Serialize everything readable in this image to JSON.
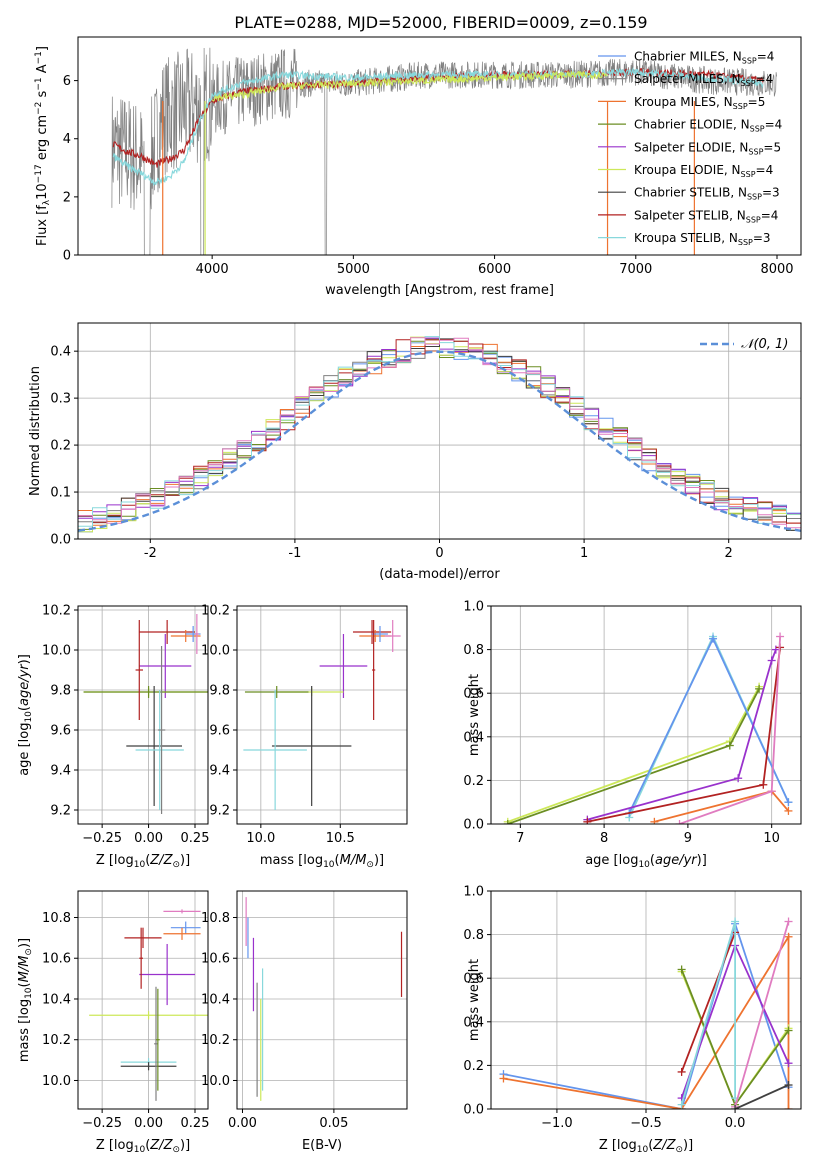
{
  "title": "PLATE=0288, MJD=52000, FIBERID=0009, z=0.159",
  "models": [
    {
      "name": "Chabrier MILES",
      "nssp": "4",
      "color": "#6495ed"
    },
    {
      "name": "Salpeter MILES",
      "nssp": "4",
      "color": "#808080"
    },
    {
      "name": "Kroupa MILES",
      "nssp": "5",
      "color": "#ee7330"
    },
    {
      "name": "Chabrier ELODIE",
      "nssp": "4",
      "color": "#6b8e23"
    },
    {
      "name": "Salpeter ELODIE",
      "nssp": "5",
      "color": "#9932cc"
    },
    {
      "name": "Kroupa ELODIE",
      "nssp": "4",
      "color": "#cde85a"
    },
    {
      "name": "Chabrier STELIB",
      "nssp": "3",
      "color": "#404040"
    },
    {
      "name": "Salpeter STELIB",
      "nssp": "4",
      "color": "#b22222"
    },
    {
      "name": "Kroupa STELIB",
      "nssp": "3",
      "color": "#88d8dc"
    }
  ],
  "chart_data": [
    {
      "id": "spectrum",
      "type": "line",
      "xlabel": "wavelength [Angstrom, rest frame]",
      "ylabel": "Flux [f_λ 10^-17 erg cm^-2 s^-1 A^-1]",
      "xlim": [
        3050,
        8170
      ],
      "ylim": [
        0,
        7.5
      ],
      "xticks": [
        4000,
        5000,
        6000,
        7000,
        8000
      ],
      "yticks": [
        0,
        2,
        4,
        6
      ],
      "data_series": {
        "name": "",
        "color": "#808080",
        "x": [
          3300,
          3450,
          3550,
          3650,
          3800,
          4000,
          4200,
          4500,
          5000,
          5500,
          6000,
          6500,
          7000,
          7500,
          8000
        ],
        "y": [
          3.7,
          3.4,
          3.0,
          4.8,
          5.0,
          5.3,
          5.6,
          5.9,
          5.9,
          6.2,
          6.2,
          6.2,
          6.3,
          6.0,
          5.9
        ]
      },
      "model_series": [
        {
          "name": "Salpeter STELIB",
          "color": "#b22222",
          "x": [
            3300,
            3400,
            3500,
            3600,
            3700,
            3800,
            3900,
            4000,
            4200,
            4500,
            5000,
            5500,
            6000,
            6500,
            7000,
            7500,
            7900
          ],
          "y": [
            3.8,
            3.55,
            3.4,
            3.1,
            3.3,
            3.6,
            4.6,
            5.3,
            5.6,
            5.8,
            5.9,
            6.1,
            6.2,
            6.2,
            6.3,
            6.2,
            6.0
          ]
        },
        {
          "name": "Kroupa STELIB",
          "color": "#88d8dc",
          "x": [
            3300,
            3400,
            3500,
            3600,
            3700,
            3800,
            3900,
            4000,
            4200,
            4500,
            5000,
            5500,
            6000,
            6500,
            7000,
            7500,
            7900
          ],
          "y": [
            3.4,
            3.05,
            2.8,
            2.5,
            2.7,
            3.2,
            4.5,
            5.5,
            5.9,
            6.2,
            6.1,
            6.2,
            6.2,
            6.2,
            6.3,
            6.1,
            5.9
          ]
        },
        {
          "name": "Kroupa ELODIE",
          "color": "#cde85a",
          "x": [
            4000,
            4200,
            4500,
            5000,
            5500,
            6000,
            6500,
            6800
          ],
          "y": [
            5.4,
            5.5,
            5.8,
            5.9,
            6.0,
            6.1,
            6.2,
            6.2
          ]
        }
      ]
    },
    {
      "id": "residuals",
      "type": "histogram",
      "xlabel": "(data-model)/error",
      "ylabel": "Normed distribution",
      "xlim": [
        -2.5,
        2.5
      ],
      "ylim": [
        0,
        0.46
      ],
      "xticks": [
        -2,
        -1,
        0,
        1,
        2
      ],
      "yticks": [
        0.0,
        0.1,
        0.2,
        0.3,
        0.4
      ],
      "bin_width": 0.1,
      "reference_label": "𝒩(0, 1)",
      "reference_color": "#5b8fd8"
    },
    {
      "id": "age_vs_Z",
      "type": "scatter-errorbar",
      "xlabel": "Z [log10(Z/Z⊙)]",
      "ylabel": "age [log10(age/yr)]",
      "xlim": [
        -0.38,
        0.32
      ],
      "ylim": [
        9.13,
        10.22
      ],
      "xticks": [
        -0.25,
        0.0,
        0.25
      ],
      "xticklabels": [
        "−0.25",
        "0.00",
        "0.25"
      ],
      "yticks": [
        9.2,
        9.4,
        9.6,
        9.8,
        10.0,
        10.2
      ],
      "points": [
        {
          "color": "#b22222",
          "x": 0.1,
          "xerr": 0.15,
          "y": 10.09,
          "yerr": 0.06
        },
        {
          "color": "#ee7330",
          "x": 0.2,
          "xerr": 0.08,
          "y": 10.07,
          "yerr": 0.03
        },
        {
          "color": "#6495ed",
          "x": 0.24,
          "xerr": 0.04,
          "y": 10.08,
          "yerr": 0.04
        },
        {
          "color": "#9932cc",
          "x": 0.09,
          "xerr": 0.14,
          "y": 9.92,
          "yerr": 0.16
        },
        {
          "color": "#cde85a",
          "x": 0.0,
          "xerr": 0.35,
          "y": 9.79,
          "yerr": 0.02
        },
        {
          "color": "#6b8e23",
          "x": 0.0,
          "xerr": 0.35,
          "y": 9.79,
          "yerr": 0.03
        },
        {
          "color": "#b22222",
          "x": -0.05,
          "xerr": 0.02,
          "y": 9.9,
          "yerr": 0.25
        },
        {
          "color": "#404040",
          "x": 0.03,
          "xerr": 0.15,
          "y": 9.52,
          "yerr": 0.3
        },
        {
          "color": "#88d8dc",
          "x": 0.06,
          "xerr": 0.13,
          "y": 9.5,
          "yerr": 0.3
        },
        {
          "color": "#808080",
          "x": 0.07,
          "xerr": 0.02,
          "y": 9.6,
          "yerr": 0.42
        },
        {
          "color": "#e07cc0",
          "x": 0.26,
          "xerr": 0.01,
          "y": 10.08,
          "yerr": 0.1
        }
      ]
    },
    {
      "id": "age_vs_mass",
      "type": "scatter-errorbar",
      "xlabel": "mass [log10(M/M⊙)]",
      "ylabel": "",
      "xlim": [
        9.85,
        10.92
      ],
      "ylim": [
        9.13,
        10.22
      ],
      "xticks": [
        10.0,
        10.5
      ],
      "xticklabels": [
        "10.0",
        "10.5"
      ],
      "yticks": [
        9.2,
        9.4,
        9.6,
        9.8,
        10.0,
        10.2
      ],
      "points": [
        {
          "color": "#b22222",
          "x": 10.7,
          "xerr": 0.12,
          "y": 10.09,
          "yerr": 0.06
        },
        {
          "color": "#ee7330",
          "x": 10.72,
          "xerr": 0.1,
          "y": 10.07,
          "yerr": 0.03
        },
        {
          "color": "#6495ed",
          "x": 10.75,
          "xerr": 0.05,
          "y": 10.08,
          "yerr": 0.04
        },
        {
          "color": "#e07cc0",
          "x": 10.83,
          "xerr": 0.05,
          "y": 10.07,
          "yerr": 0.08
        },
        {
          "color": "#9932cc",
          "x": 10.52,
          "xerr": 0.15,
          "y": 9.92,
          "yerr": 0.16
        },
        {
          "color": "#cde85a",
          "x": 10.32,
          "xerr": 0.2,
          "y": 9.79,
          "yerr": 0.02
        },
        {
          "color": "#6b8e23",
          "x": 10.1,
          "xerr": 0.2,
          "y": 9.79,
          "yerr": 0.03
        },
        {
          "color": "#404040",
          "x": 10.32,
          "xerr": 0.25,
          "y": 9.52,
          "yerr": 0.3
        },
        {
          "color": "#88d8dc",
          "x": 10.09,
          "xerr": 0.2,
          "y": 9.5,
          "yerr": 0.3
        },
        {
          "color": "#b22222",
          "x": 10.71,
          "xerr": 0.01,
          "y": 9.9,
          "yerr": 0.25
        }
      ]
    },
    {
      "id": "weight_vs_age",
      "type": "line",
      "xlabel": "age [log10(age/yr)]",
      "ylabel": "mass weight",
      "xlim": [
        6.65,
        10.35
      ],
      "ylim": [
        0,
        1.0
      ],
      "xticks": [
        7,
        8,
        9,
        10
      ],
      "yticks": [
        0.0,
        0.2,
        0.4,
        0.6,
        0.8,
        1.0
      ],
      "series": [
        {
          "color": "#cde85a",
          "x": [
            6.85,
            9.5,
            9.85
          ],
          "y": [
            0.01,
            0.38,
            0.63
          ]
        },
        {
          "color": "#6b8e23",
          "x": [
            6.85,
            9.5,
            9.85
          ],
          "y": [
            0.0,
            0.36,
            0.62
          ]
        },
        {
          "color": "#88d8dc",
          "x": [
            8.3,
            9.3,
            10.2
          ],
          "y": [
            0.03,
            0.86,
            0.1
          ]
        },
        {
          "color": "#6495ed",
          "x": [
            8.3,
            9.3,
            10.2
          ],
          "y": [
            0.05,
            0.85,
            0.1
          ]
        },
        {
          "color": "#9932cc",
          "x": [
            7.8,
            9.6,
            10.0,
            10.05
          ],
          "y": [
            0.02,
            0.21,
            0.75,
            0.8
          ]
        },
        {
          "color": "#b22222",
          "x": [
            7.8,
            9.9,
            10.1
          ],
          "y": [
            0.01,
            0.18,
            0.81
          ]
        },
        {
          "color": "#ee7330",
          "x": [
            8.6,
            10.0,
            10.2
          ],
          "y": [
            0.01,
            0.15,
            0.06
          ]
        },
        {
          "color": "#e07cc0",
          "x": [
            8.9,
            10.0,
            10.1
          ],
          "y": [
            0.0,
            0.15,
            0.86
          ]
        }
      ]
    },
    {
      "id": "mass_vs_Z",
      "type": "scatter-errorbar",
      "xlabel": "Z [log10(Z/Z⊙)]",
      "ylabel": "mass [log10(M/M⊙)]",
      "xlim": [
        -0.38,
        0.32
      ],
      "ylim": [
        9.86,
        10.93
      ],
      "xticks": [
        -0.25,
        0.0,
        0.25
      ],
      "xticklabels": [
        "−0.25",
        "0.00",
        "0.25"
      ],
      "yticks": [
        10.0,
        10.2,
        10.4,
        10.6,
        10.8
      ],
      "points": [
        {
          "color": "#e07cc0",
          "x": 0.18,
          "xerr": 0.1,
          "y": 10.83,
          "yerr": 0.01
        },
        {
          "color": "#6495ed",
          "x": 0.2,
          "xerr": 0.08,
          "y": 10.75,
          "yerr": 0.03
        },
        {
          "color": "#ee7330",
          "x": 0.18,
          "xerr": 0.1,
          "y": 10.72,
          "yerr": 0.03
        },
        {
          "color": "#b22222",
          "x": -0.03,
          "xerr": 0.1,
          "y": 10.7,
          "yerr": 0.05
        },
        {
          "color": "#9932cc",
          "x": 0.1,
          "xerr": 0.15,
          "y": 10.52,
          "yerr": 0.15
        },
        {
          "color": "#cde85a",
          "x": 0.0,
          "xerr": 0.32,
          "y": 10.32,
          "yerr": 0.02
        },
        {
          "color": "#88d8dc",
          "x": 0.0,
          "xerr": 0.15,
          "y": 10.09,
          "yerr": 0.02
        },
        {
          "color": "#404040",
          "x": 0.0,
          "xerr": 0.15,
          "y": 10.07,
          "yerr": 0.02
        },
        {
          "color": "#b22222",
          "x": -0.04,
          "xerr": 0.01,
          "y": 10.6,
          "yerr": 0.15
        },
        {
          "color": "#808080",
          "x": 0.04,
          "xerr": 0.01,
          "y": 10.18,
          "yerr": 0.28
        },
        {
          "color": "#6b8e23",
          "x": 0.05,
          "xerr": 0.01,
          "y": 10.2,
          "yerr": 0.25
        }
      ]
    },
    {
      "id": "mass_vs_ebv",
      "type": "scatter-errorbar",
      "xlabel": "E(B-V)",
      "ylabel": "",
      "xlim": [
        -0.003,
        0.09
      ],
      "ylim": [
        9.86,
        10.93
      ],
      "xticks": [
        0.0,
        0.05
      ],
      "xticklabels": [
        "0.00",
        "0.05"
      ],
      "yticks": [
        10.0,
        10.2,
        10.4,
        10.6,
        10.8
      ],
      "points": [
        {
          "color": "#e07cc0",
          "x": 0.002,
          "xerr": 0,
          "y": 10.78,
          "yerr": 0.12
        },
        {
          "color": "#6495ed",
          "x": 0.003,
          "xerr": 0,
          "y": 10.7,
          "yerr": 0.1
        },
        {
          "color": "#9932cc",
          "x": 0.006,
          "xerr": 0,
          "y": 10.52,
          "yerr": 0.18
        },
        {
          "color": "#808080",
          "x": 0.008,
          "xerr": 0,
          "y": 10.2,
          "yerr": 0.28
        },
        {
          "color": "#cde85a",
          "x": 0.01,
          "xerr": 0,
          "y": 10.15,
          "yerr": 0.25
        },
        {
          "color": "#88d8dc",
          "x": 0.011,
          "xerr": 0,
          "y": 10.25,
          "yerr": 0.3
        },
        {
          "color": "#b22222",
          "x": 0.087,
          "xerr": 0,
          "y": 10.57,
          "yerr": 0.16
        }
      ]
    },
    {
      "id": "weight_vs_Z",
      "type": "line",
      "xlabel": "Z [log10(Z/Z⊙)]",
      "ylabel": "mass weight",
      "xlim": [
        -1.37,
        0.37
      ],
      "ylim": [
        0,
        1.0
      ],
      "xticks": [
        -1.0,
        -0.5,
        0.0
      ],
      "xticklabels": [
        "−1.0",
        "−0.5",
        "0.0"
      ],
      "yticks": [
        0.0,
        0.2,
        0.4,
        0.6,
        0.8,
        1.0
      ],
      "series": [
        {
          "color": "#6495ed",
          "x": [
            -1.3,
            -0.3,
            0.0,
            0.3
          ],
          "y": [
            0.16,
            0.0,
            0.85,
            0.1
          ]
        },
        {
          "color": "#ee7330",
          "x": [
            -1.3,
            -0.3,
            0.3,
            0.3
          ],
          "y": [
            0.14,
            0.0,
            0.79,
            0.0
          ]
        },
        {
          "color": "#cde85a",
          "x": [
            -0.3,
            0.0,
            0.3
          ],
          "y": [
            0.63,
            0.02,
            0.37
          ]
        },
        {
          "color": "#6b8e23",
          "x": [
            -0.3,
            0.0,
            0.3
          ],
          "y": [
            0.64,
            0.02,
            0.36
          ]
        },
        {
          "color": "#b22222",
          "x": [
            -0.3,
            0.0
          ],
          "y": [
            0.17,
            0.81
          ]
        },
        {
          "color": "#9932cc",
          "x": [
            -0.3,
            0.0,
            0.3
          ],
          "y": [
            0.05,
            0.75,
            0.21
          ]
        },
        {
          "color": "#88d8dc",
          "x": [
            -0.3,
            0.0,
            0.0
          ],
          "y": [
            0.02,
            0.86,
            0.05
          ]
        },
        {
          "color": "#e07cc0",
          "x": [
            0.0,
            0.3
          ],
          "y": [
            0.01,
            0.86
          ]
        },
        {
          "color": "#404040",
          "x": [
            0.0,
            0.3
          ],
          "y": [
            0.0,
            0.11
          ]
        }
      ]
    }
  ]
}
